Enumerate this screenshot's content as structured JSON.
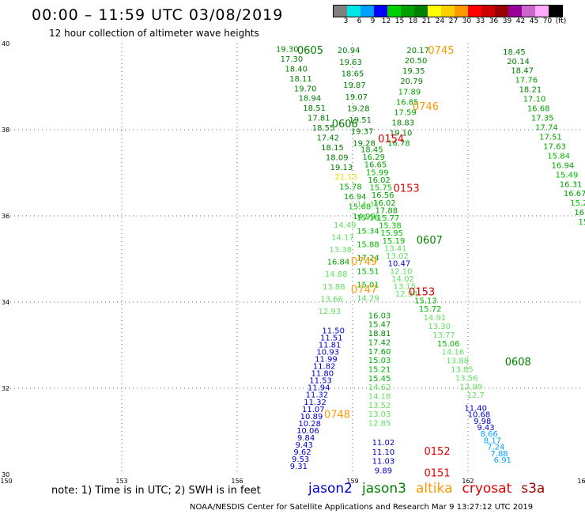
{
  "header": {
    "title": "00:00 – 11:59 UTC 03/08/2019",
    "subtitle": "12 hour collection of altimeter wave heights"
  },
  "colorbar": {
    "colors": [
      "#808080",
      "#00e5e5",
      "#00a0ff",
      "#0000ff",
      "#00d000",
      "#00a000",
      "#008000",
      "#ffff00",
      "#ffd000",
      "#ff9900",
      "#ff0000",
      "#cc0000",
      "#990000",
      "#990099",
      "#cc66cc",
      "#ffaaff",
      "#000000"
    ],
    "labels": [
      "3",
      "6",
      "9",
      "12",
      "15",
      "18",
      "21",
      "24",
      "27",
      "30",
      "33",
      "36",
      "39",
      "42",
      "45",
      "70",
      "(ft)"
    ]
  },
  "footer": {
    "note": "note:  1) Time is in UTC;  2) SWH is in feet",
    "credit": "NOAA/NESDIS Center for Satellite Applications and Research     Mar  9 13:27:12 UTC 2019"
  },
  "satellites": [
    {
      "name": "jason2",
      "color": "#0000cc"
    },
    {
      "name": "jason3",
      "color": "#008000"
    },
    {
      "name": "altika",
      "color": "#ff9900"
    },
    {
      "name": "cryosat",
      "color": "#dd0000"
    },
    {
      "name": "s3a",
      "color": "#990000"
    }
  ],
  "chart_data": {
    "type": "scatter",
    "title": "00:00 – 11:59 UTC 03/08/2019",
    "subtitle": "12 hour collection of altimeter wave heights",
    "x_ticks": [
      150,
      153,
      156,
      159,
      162,
      165
    ],
    "y_ticks": [
      30,
      32,
      34,
      36,
      38,
      40
    ],
    "xlim": [
      150,
      165
    ],
    "ylim": [
      30,
      40
    ],
    "grid": true,
    "unit": "feet",
    "time_labels": [
      {
        "text": "0605",
        "x": 157.9,
        "y": 39.85,
        "color": "#008000"
      },
      {
        "text": "0745",
        "x": 161.3,
        "y": 39.85,
        "color": "#ff9900"
      },
      {
        "text": "0746",
        "x": 160.9,
        "y": 38.55,
        "color": "#ff9900"
      },
      {
        "text": "0606",
        "x": 158.8,
        "y": 38.15,
        "color": "#008000"
      },
      {
        "text": "0154",
        "x": 160.0,
        "y": 37.8,
        "color": "#dd0000"
      },
      {
        "text": "0153",
        "x": 160.4,
        "y": 36.65,
        "color": "#dd0000"
      },
      {
        "text": "0607",
        "x": 161.0,
        "y": 35.45,
        "color": "#008000"
      },
      {
        "text": "0749",
        "x": 159.3,
        "y": 34.95,
        "color": "#ff9900"
      },
      {
        "text": "0747",
        "x": 159.3,
        "y": 34.3,
        "color": "#ff9900"
      },
      {
        "text": "0153",
        "x": 160.8,
        "y": 34.25,
        "color": "#dd0000"
      },
      {
        "text": "0608",
        "x": 163.3,
        "y": 32.62,
        "color": "#008000"
      },
      {
        "text": "0748",
        "x": 158.6,
        "y": 31.4,
        "color": "#ff9900"
      },
      {
        "text": "0152",
        "x": 161.2,
        "y": 30.55,
        "color": "#dd0000"
      },
      {
        "text": "0151",
        "x": 161.2,
        "y": 30.05,
        "color": "#dd0000"
      }
    ],
    "series": [
      {
        "name": "jason3",
        "start": [
          157.3,
          39.88
        ],
        "end": [
          159.3,
          36.0
        ],
        "values": [
          "19.30",
          "17.30",
          "18.40",
          "18.11",
          "19.70",
          "18.94",
          "18.51",
          "17.81",
          "18.55",
          "17.42",
          "18.15",
          "18.09",
          "19.13",
          "21.13",
          "15.78",
          "16.94",
          "15.68",
          "14.99"
        ],
        "colors": [
          "#008000",
          "#008000",
          "#008000",
          "#008000",
          "#008000",
          "#008000",
          "#008000",
          "#008000",
          "#008000",
          "#008000",
          "#008000",
          "#008000",
          "#008000",
          "#e6e600",
          "#00a000",
          "#00a000",
          "#00b800",
          "#00b800"
        ]
      },
      {
        "name": "jason3",
        "start": [
          158.9,
          39.85
        ],
        "end": [
          159.3,
          37.7
        ],
        "values": [
          "20.94",
          "19.63",
          "18.65",
          "19.87",
          "19.07",
          "19.28",
          "19.51",
          "19.37",
          "19.28"
        ],
        "colors": [
          "#008000",
          "#008000",
          "#008000",
          "#008000",
          "#008000",
          "#008000",
          "#008000",
          "#008000",
          "#008000"
        ]
      },
      {
        "name": "jason3",
        "start": [
          160.7,
          39.85
        ],
        "end": [
          160.2,
          37.7
        ],
        "values": [
          "20.17",
          "20.50",
          "19.35",
          "20.79",
          "17.89",
          "16.85",
          "17.59",
          "18.83",
          "19.10",
          "16.78"
        ],
        "colors": [
          "#008000",
          "#008000",
          "#008000",
          "#008000",
          "#00a000",
          "#00a000",
          "#00a000",
          "#008000",
          "#008000",
          "#00a000"
        ]
      },
      {
        "name": "jason3",
        "start": [
          159.5,
          37.55
        ],
        "end": [
          160.4,
          34.2
        ],
        "values": [
          "18.45",
          "16.29",
          "16.65",
          "15.99",
          "16.02",
          "15.75",
          "16.56",
          "16.02",
          "17.88",
          "15.77",
          "15.38",
          "15.95",
          "15.19",
          "13.41",
          "13.02",
          "10.47",
          "12.10",
          "14.02",
          "13.15",
          "12.94"
        ],
        "colors": [
          "#00a000",
          "#00a000",
          "#00a000",
          "#00b800",
          "#00a000",
          "#00b800",
          "#00a000",
          "#00a000",
          "#00a000",
          "#00b800",
          "#00c000",
          "#00c000",
          "#00b800",
          "#60e060",
          "#60e060",
          "#0000cc",
          "#60e060",
          "#60e060",
          "#60e060",
          "#60e060"
        ]
      },
      {
        "name": "jason3",
        "start": [
          159.4,
          36.28
        ],
        "end": [
          159.4,
          34.1
        ],
        "values": [
          "14.31",
          "15.16",
          "15.34",
          "15.88",
          "17.24",
          "15.51",
          "15.01",
          "14.29"
        ],
        "colors": [
          "#60e060",
          "#00b800",
          "#00b800",
          "#00b800",
          "#00a000",
          "#00b800",
          "#00b800",
          "#60e060"
        ]
      },
      {
        "name": "jason3",
        "start": [
          158.8,
          35.8
        ],
        "end": [
          158.4,
          33.8
        ],
        "values": [
          "14.49",
          "14.17",
          "13.38",
          "16.84",
          "14.88",
          "13.88",
          "13.66",
          "12.93"
        ],
        "colors": [
          "#60e060",
          "#60e060",
          "#60e060",
          "#00a000",
          "#60e060",
          "#60e060",
          "#60e060",
          "#60e060"
        ]
      },
      {
        "name": "jason3",
        "start": [
          160.9,
          34.05
        ],
        "end": [
          162.2,
          31.85
        ],
        "values": [
          "15.13",
          "15.72",
          "14.91",
          "13.30",
          "13.77",
          "15.06",
          "14.16",
          "13.88",
          "13.85",
          "13.56",
          "12.99",
          "12.7"
        ],
        "colors": [
          "#00b800",
          "#00b800",
          "#60e060",
          "#60e060",
          "#60e060",
          "#00b800",
          "#60e060",
          "#60e060",
          "#60e060",
          "#60e060",
          "#60e060",
          "#60e060"
        ]
      },
      {
        "name": "jason3",
        "start": [
          163.2,
          39.82
        ],
        "end": [
          165.2,
          35.65
        ],
        "values": [
          "18.45",
          "20.14",
          "18.47",
          "17.76",
          "18.21",
          "17.10",
          "16.68",
          "17.35",
          "17.74",
          "17.51",
          "17.63",
          "15.84",
          "16.94",
          "15.49",
          "16.31",
          "16.67",
          "15.2",
          "16.6",
          "15.9",
          "16"
        ],
        "colors": [
          "#008000",
          "#008000",
          "#008000",
          "#00a000",
          "#008000",
          "#00a000",
          "#00a000",
          "#00a000",
          "#00a000",
          "#00a000",
          "#00a000",
          "#00b800",
          "#00a000",
          "#00b800",
          "#00a000",
          "#00a000",
          "#00b800",
          "#00a000",
          "#00b800",
          "#00a000"
        ]
      },
      {
        "name": "jason3",
        "start": [
          159.7,
          33.7
        ],
        "end": [
          159.7,
          31.2
        ],
        "values": [
          "16.03",
          "15.47",
          "18.81",
          "17.42",
          "17.60",
          "15.03",
          "15.21",
          "15.45",
          "14.62",
          "14.18",
          "13.52",
          "13.03",
          "12.85"
        ],
        "colors": [
          "#00a000",
          "#00a000",
          "#008000",
          "#00a000",
          "#00a000",
          "#00b800",
          "#00b800",
          "#00b800",
          "#60e060",
          "#60e060",
          "#60e060",
          "#60e060",
          "#60e060"
        ]
      },
      {
        "name": "jason2",
        "start": [
          158.5,
          33.35
        ],
        "end": [
          157.6,
          30.2
        ],
        "values": [
          "11.50",
          "11.51",
          "11.81",
          "10.93",
          "11.99",
          "11.82",
          "11.80",
          "11.53",
          "11.94",
          "11.32",
          "11.32",
          "11.07",
          "10.89",
          "10.28",
          "10.06",
          "9.84",
          "9.43",
          "9.62",
          "9.53",
          "9.31"
        ],
        "colors": [
          "#0000cc",
          "#0000cc",
          "#0000cc",
          "#0000cc",
          "#0000cc",
          "#0000cc",
          "#0000cc",
          "#0000cc",
          "#0000cc",
          "#0000cc",
          "#0000cc",
          "#0000cc",
          "#0000cc",
          "#0000cc",
          "#0000cc",
          "#0000cc",
          "#0000cc",
          "#0000cc",
          "#0000cc",
          "#0000cc"
        ]
      },
      {
        "name": "jason2",
        "start": [
          159.8,
          30.75
        ],
        "end": [
          159.8,
          30.1
        ],
        "values": [
          "11.02",
          "11.10",
          "11.03",
          "9.89"
        ],
        "colors": [
          "#0000cc",
          "#0000cc",
          "#0000cc",
          "#0000cc"
        ]
      },
      {
        "name": "jason2",
        "start": [
          162.2,
          31.55
        ],
        "end": [
          162.9,
          30.35
        ],
        "values": [
          "11.40",
          "10.68",
          "9.98",
          "9.43",
          "8.66",
          "8.17",
          "7.24",
          "7.88",
          "6.91"
        ],
        "colors": [
          "#0000cc",
          "#0000cc",
          "#0000cc",
          "#0000cc",
          "#00a0ff",
          "#00a0ff",
          "#00a0ff",
          "#00a0ff",
          "#00a0ff"
        ]
      }
    ]
  }
}
